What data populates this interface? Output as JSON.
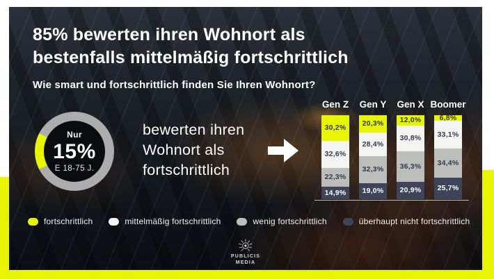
{
  "colors": {
    "accent_yellow": "#E8F502",
    "segment_white": "#F4F4F2",
    "segment_gray": "#BDBDBB",
    "segment_navy": "#3E4459",
    "label_dark": "#333A50",
    "label_light": "#FFFFFF",
    "donut_ring_gray": "#ACACAC"
  },
  "header": {
    "title_line1": "85% bewerten ihren Wohnort als",
    "title_line2": "bestenfalls mittelmäßig fortschrittlich",
    "subtitle": "Wie smart und fortschrittlich finden Sie Ihren Wohnort?"
  },
  "donut": {
    "percent": 15,
    "label_top": "Nur",
    "value_text": "15%",
    "label_bottom": "E 18-75 J."
  },
  "callout": {
    "text": "bewerten ihren\nWohnort als\nfortschrittlich"
  },
  "chart_data": {
    "type": "bar",
    "stacked": true,
    "unit": "%",
    "total_per_category": 100,
    "categories": [
      "Gen Z",
      "Gen Y",
      "Gen X",
      "Boomer"
    ],
    "series": [
      {
        "name": "fortschrittlich",
        "color": "#E8F502",
        "text_color": "#333A50",
        "values": [
          30.2,
          20.3,
          12.0,
          6.8
        ],
        "display": [
          "30,2%",
          "20,3%",
          "12,0%",
          "6,8%"
        ]
      },
      {
        "name": "mittelmäßig fortschrittlich",
        "color": "#F4F4F2",
        "text_color": "#333A50",
        "values": [
          32.6,
          28.4,
          30.8,
          33.1
        ],
        "display": [
          "32,6%",
          "28,4%",
          "30,8%",
          "33,1%"
        ]
      },
      {
        "name": "wenig fortschrittlich",
        "color": "#BDBDBB",
        "text_color": "#333A50",
        "values": [
          22.3,
          32.3,
          36.3,
          34.4
        ],
        "display": [
          "22,3%",
          "32,3%",
          "36,3%",
          "34,4%"
        ]
      },
      {
        "name": "überhaupt nicht fortschrittlich",
        "color": "#3E4459",
        "text_color": "#FFFFFF",
        "values": [
          14.9,
          19.0,
          20.9,
          25.7
        ],
        "display": [
          "14,9%",
          "19,0%",
          "20,9%",
          "25,7%"
        ]
      }
    ]
  },
  "legend": {
    "items": [
      {
        "label": "fortschrittlich",
        "color": "#E8F502"
      },
      {
        "label": "mittelmäßig fortschrittlich",
        "color": "#F4F4F2"
      },
      {
        "label": "wenig fortschrittlich",
        "color": "#BDBDBB"
      },
      {
        "label": "überhaupt nicht fortschrittlich",
        "color": "#3E4459"
      }
    ]
  },
  "footer": {
    "logo_line1": "PUBLICIS",
    "logo_line2": "MEDIA"
  }
}
